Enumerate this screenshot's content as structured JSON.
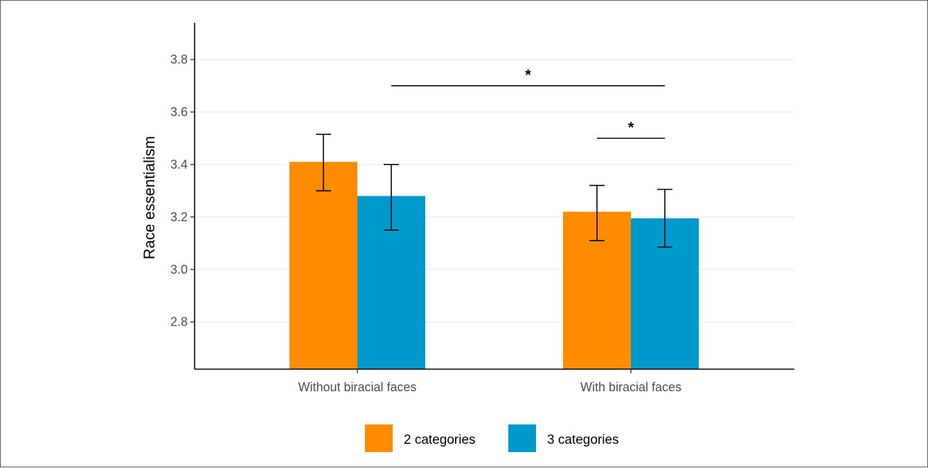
{
  "chart_data": {
    "type": "bar",
    "title": "",
    "xlabel": "",
    "ylabel": "Race essentialism",
    "categories": [
      "Without biracial faces",
      "With biracial faces"
    ],
    "series": [
      {
        "name": "2 categories",
        "color": "#ff8c00",
        "values": [
          3.41,
          3.22
        ],
        "err_low": [
          3.3,
          3.11
        ],
        "err_high": [
          3.515,
          3.32
        ]
      },
      {
        "name": "3 categories",
        "color": "#0099cc",
        "values": [
          3.28,
          3.195
        ],
        "err_low": [
          3.15,
          3.085
        ],
        "err_high": [
          3.4,
          3.305
        ]
      }
    ],
    "ylim": [
      2.62,
      3.94
    ],
    "yticks": [
      2.8,
      3.0,
      3.2,
      3.4,
      3.6,
      3.8
    ],
    "ytick_labels": [
      "2.8",
      "3.0",
      "3.2",
      "3.4",
      "3.6",
      "3.8"
    ],
    "grid": "horizontal",
    "legend_position": "bottom",
    "annotations": [
      {
        "label": "*",
        "from_category": 0,
        "from_series": 1,
        "to_category": 1,
        "to_series": 1,
        "y": 3.7
      },
      {
        "label": "*",
        "from_category": 1,
        "from_series": 0,
        "to_category": 1,
        "to_series": 1,
        "y": 3.5
      }
    ]
  }
}
